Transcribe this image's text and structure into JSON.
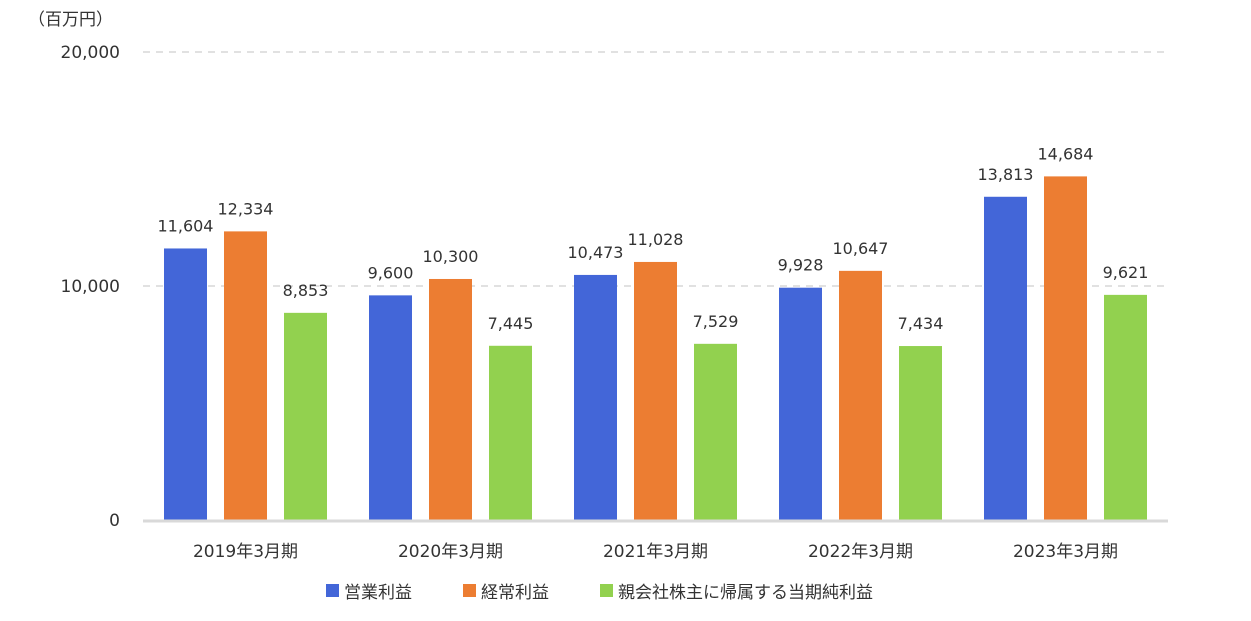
{
  "chart_data": {
    "type": "bar",
    "unit_label": "（百万円）",
    "categories": [
      "2019年3月期",
      "2020年3月期",
      "2021年3月期",
      "2022年3月期",
      "2023年3月期"
    ],
    "series": [
      {
        "name": "営業利益",
        "color": "#4366d8",
        "values": [
          11604,
          9600,
          10473,
          9928,
          13813
        ]
      },
      {
        "name": "経常利益",
        "color": "#ec7d32",
        "values": [
          12334,
          10300,
          11028,
          10647,
          14684
        ]
      },
      {
        "name": "親会社株主に帰属する当期純利益",
        "color": "#92d14f",
        "values": [
          8853,
          7445,
          7529,
          7434,
          9621
        ]
      }
    ],
    "ylim": [
      0,
      20000
    ],
    "yticks": [
      0,
      10000,
      20000
    ],
    "ytick_labels": [
      "0",
      "10,000",
      "20,000"
    ],
    "grid": "horizontal dashed",
    "legend_position": "bottom",
    "legend_marker": "■"
  }
}
